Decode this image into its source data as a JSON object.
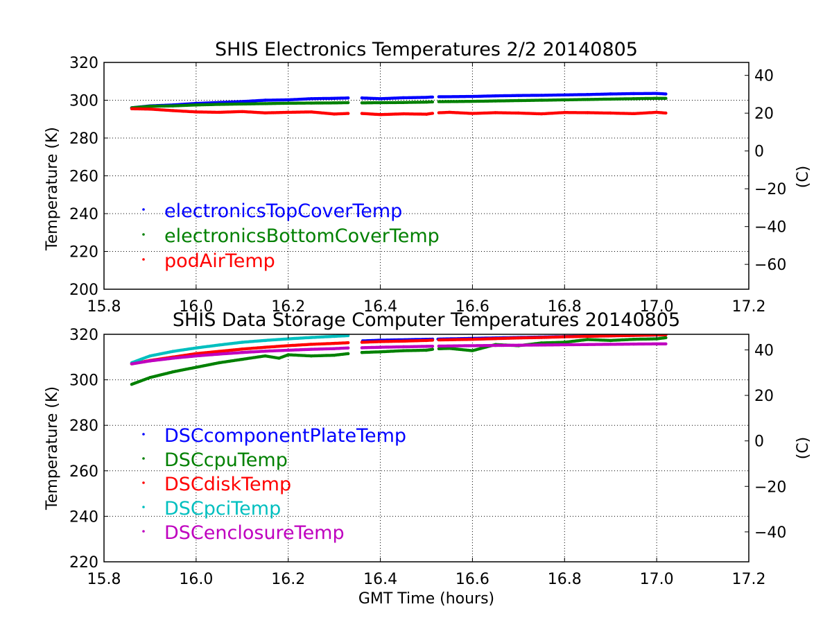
{
  "chart_data": [
    {
      "type": "scatter",
      "title": "SHIS Electronics Temperatures 2/2 20140805",
      "xlabel": "",
      "ylabel": "Temperature (K)",
      "ylabel_right": "(C)",
      "xlim": [
        15.8,
        17.2
      ],
      "ylim": [
        200,
        320
      ],
      "ylim_right": [
        -73.15,
        46.85
      ],
      "x_ticks": [
        "15.8",
        "16.0",
        "16.2",
        "16.4",
        "16.6",
        "16.8",
        "17.0",
        "17.2"
      ],
      "y_ticks": [
        "200",
        "220",
        "240",
        "260",
        "280",
        "300",
        "320"
      ],
      "y_ticks_right": [
        "−60",
        "−40",
        "−20",
        "0",
        "20",
        "40"
      ],
      "grid": true,
      "legend_position": "lower-left",
      "gaps": [
        [
          16.33,
          16.36
        ],
        [
          16.515,
          16.525
        ]
      ],
      "series": [
        {
          "name": "electronicsTopCoverTemp",
          "color": "#0000ff",
          "x": [
            15.86,
            15.9,
            15.95,
            16.0,
            16.05,
            16.1,
            16.15,
            16.2,
            16.25,
            16.3,
            16.33,
            16.36,
            16.4,
            16.45,
            16.5,
            16.52,
            16.6,
            16.65,
            16.7,
            16.75,
            16.8,
            16.85,
            16.9,
            16.95,
            17.0,
            17.02
          ],
          "values": [
            296,
            297,
            297.5,
            298.3,
            298.8,
            299.3,
            300,
            300.2,
            300.8,
            301,
            301.2,
            301.2,
            300.8,
            301.3,
            301.5,
            301.8,
            302,
            302.3,
            302.5,
            302.6,
            302.8,
            303,
            303.3,
            303.5,
            303.6,
            303.3
          ]
        },
        {
          "name": "electronicsBottomCoverTemp",
          "color": "#008000",
          "x": [
            15.86,
            15.9,
            15.95,
            16.0,
            16.05,
            16.1,
            16.15,
            16.2,
            16.25,
            16.3,
            16.33,
            16.36,
            16.4,
            16.45,
            16.5,
            16.52,
            16.6,
            16.65,
            16.7,
            16.75,
            16.8,
            16.85,
            16.9,
            16.95,
            17.0,
            17.02
          ],
          "values": [
            296,
            296.8,
            297,
            297.5,
            297.8,
            298,
            298.2,
            298.4,
            298.5,
            298.6,
            298.7,
            298.6,
            298.7,
            298.8,
            299,
            299.2,
            299.4,
            299.6,
            299.8,
            300,
            300.2,
            300.4,
            300.6,
            300.8,
            301,
            301
          ]
        },
        {
          "name": "podAirTemp",
          "color": "#ff0000",
          "x": [
            15.86,
            15.9,
            15.95,
            16.0,
            16.05,
            16.1,
            16.15,
            16.2,
            16.25,
            16.3,
            16.33,
            16.36,
            16.4,
            16.45,
            16.5,
            16.52,
            16.55,
            16.6,
            16.65,
            16.7,
            16.75,
            16.8,
            16.85,
            16.9,
            16.95,
            17.0,
            17.02
          ],
          "values": [
            295.5,
            295.3,
            294.5,
            293.8,
            293.6,
            294,
            293.3,
            293.6,
            293.8,
            292.7,
            293,
            293,
            292.4,
            292.8,
            292.6,
            293.3,
            293.6,
            293,
            293.4,
            293.2,
            292.8,
            293.5,
            293.4,
            293.2,
            292.9,
            293.6,
            293.2
          ]
        }
      ]
    },
    {
      "type": "scatter",
      "title": "SHIS Data Storage Computer Temperatures 20140805",
      "xlabel": "GMT Time (hours)",
      "ylabel": "Temperature (K)",
      "ylabel_right": "(C)",
      "xlim": [
        15.8,
        17.2
      ],
      "ylim": [
        220,
        320
      ],
      "ylim_right": [
        -53.15,
        46.85
      ],
      "x_ticks": [
        "15.8",
        "16.0",
        "16.2",
        "16.4",
        "16.6",
        "16.8",
        "17.0",
        "17.2"
      ],
      "y_ticks": [
        "220",
        "240",
        "260",
        "280",
        "300",
        "320"
      ],
      "y_ticks_right": [
        "−40",
        "−20",
        "0",
        "20",
        "40"
      ],
      "grid": true,
      "legend_position": "lower-left",
      "gaps": [
        [
          16.33,
          16.36
        ],
        [
          16.515,
          16.525
        ]
      ],
      "series": [
        {
          "name": "DSCcomponentPlateTemp",
          "color": "#0000ff",
          "x": [
            16.35,
            16.4,
            16.5,
            16.6,
            16.7,
            16.8,
            16.9,
            17.0,
            17.02
          ],
          "values": [
            317,
            317.4,
            317.8,
            318.2,
            318.6,
            319,
            319.4,
            319.7,
            319.8
          ]
        },
        {
          "name": "DSCcpuTemp",
          "color": "#008000",
          "x": [
            15.86,
            15.88,
            15.9,
            15.95,
            16.0,
            16.05,
            16.1,
            16.15,
            16.18,
            16.2,
            16.25,
            16.3,
            16.33,
            16.36,
            16.4,
            16.45,
            16.5,
            16.52,
            16.55,
            16.6,
            16.65,
            16.7,
            16.75,
            16.8,
            16.85,
            16.9,
            16.95,
            17.0,
            17.02
          ],
          "values": [
            298,
            299.5,
            301,
            303.5,
            305.5,
            307.5,
            309,
            310.5,
            309.5,
            311,
            310.5,
            310.8,
            311.5,
            312,
            312.3,
            312.8,
            313,
            313.6,
            313.8,
            312.8,
            315.5,
            315,
            316.2,
            316.5,
            317.7,
            317.3,
            317.8,
            318,
            318.5
          ]
        },
        {
          "name": "DSCdiskTemp",
          "color": "#ff0000",
          "x": [
            15.86,
            15.9,
            15.95,
            16.0,
            16.05,
            16.1,
            16.15,
            16.2,
            16.25,
            16.3,
            16.33,
            16.36,
            16.4,
            16.45,
            16.5,
            16.52,
            16.6,
            16.65,
            16.7,
            16.75,
            16.8,
            16.85,
            16.9,
            16.95,
            17.0,
            17.02
          ],
          "values": [
            307,
            308.5,
            310,
            311.5,
            312.5,
            313.5,
            314.3,
            315,
            315.6,
            316,
            316.3,
            316.5,
            316.8,
            317,
            317.3,
            317.5,
            317.8,
            318.1,
            318.4,
            318.6,
            318.9,
            319.1,
            319.3,
            319.5,
            319.7,
            319.8
          ]
        },
        {
          "name": "DSCpciTemp",
          "color": "#00bfbf",
          "x": [
            15.86,
            15.88,
            15.9,
            15.95,
            16.0,
            16.05,
            16.1,
            16.15,
            16.2,
            16.25,
            16.3,
            16.33
          ],
          "values": [
            307.5,
            309,
            310.5,
            312.5,
            314,
            315.3,
            316.5,
            317.3,
            318,
            318.6,
            319.1,
            319.4
          ]
        },
        {
          "name": "DSCenclosureTemp",
          "color": "#bf00bf",
          "x": [
            15.86,
            15.9,
            15.95,
            16.0,
            16.05,
            16.1,
            16.15,
            16.2,
            16.25,
            16.3,
            16.33,
            16.36,
            16.4,
            16.45,
            16.5,
            16.52,
            16.6,
            16.65,
            16.7,
            16.75,
            16.8,
            16.85,
            16.9,
            16.95,
            17.0,
            17.02
          ],
          "values": [
            307,
            308.3,
            309.5,
            310.5,
            311.3,
            312,
            312.6,
            313,
            313.4,
            313.7,
            314,
            314.1,
            314.3,
            314.5,
            314.7,
            314.8,
            315,
            315.1,
            315.2,
            315.3,
            315.4,
            315.5,
            315.6,
            315.7,
            315.8,
            315.8
          ]
        }
      ]
    }
  ]
}
